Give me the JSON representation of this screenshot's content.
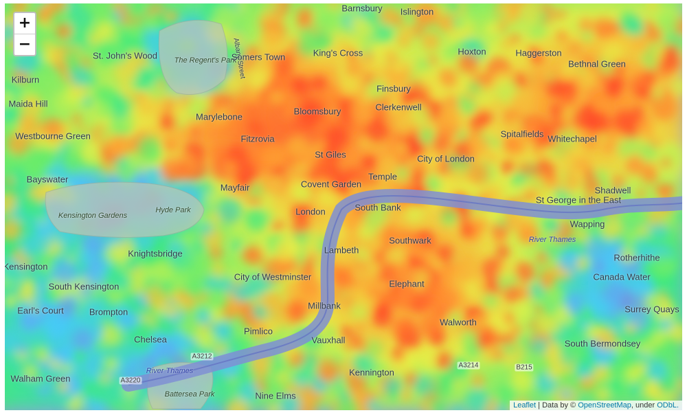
{
  "map": {
    "zoom_in_label": "+",
    "zoom_out_label": "−",
    "attribution": {
      "leaflet": "Leaflet",
      "separator": " | ",
      "data_by": "Data by © ",
      "osm": "OpenStreetMap",
      "under": ", under ",
      "odbl": "ODbL."
    },
    "places": [
      {
        "name": "Barnsbury",
        "kind": "area"
      },
      {
        "name": "Islington",
        "kind": "area"
      },
      {
        "name": "St. John's Wood",
        "kind": "area"
      },
      {
        "name": "The Regent's Park",
        "kind": "park"
      },
      {
        "name": "Albany Street",
        "kind": "street"
      },
      {
        "name": "Somers Town",
        "kind": "area"
      },
      {
        "name": "King's Cross",
        "kind": "area"
      },
      {
        "name": "Hoxton",
        "kind": "area"
      },
      {
        "name": "Haggerston",
        "kind": "area"
      },
      {
        "name": "Bethnal Green",
        "kind": "area"
      },
      {
        "name": "Kilburn",
        "kind": "area"
      },
      {
        "name": "Maida Hill",
        "kind": "area"
      },
      {
        "name": "Finsbury",
        "kind": "area"
      },
      {
        "name": "Clerkenwell",
        "kind": "area"
      },
      {
        "name": "Marylebone",
        "kind": "area"
      },
      {
        "name": "Bloomsbury",
        "kind": "area"
      },
      {
        "name": "Westbourne Green",
        "kind": "area"
      },
      {
        "name": "Fitzrovia",
        "kind": "area"
      },
      {
        "name": "Spitalfields",
        "kind": "area"
      },
      {
        "name": "Whitechapel",
        "kind": "area"
      },
      {
        "name": "St Giles",
        "kind": "area"
      },
      {
        "name": "City of London",
        "kind": "area"
      },
      {
        "name": "Bayswater",
        "kind": "area"
      },
      {
        "name": "Mayfair",
        "kind": "area"
      },
      {
        "name": "Covent Garden",
        "kind": "area"
      },
      {
        "name": "Temple",
        "kind": "area"
      },
      {
        "name": "Kensington Gardens",
        "kind": "park"
      },
      {
        "name": "Hyde Park",
        "kind": "park"
      },
      {
        "name": "London",
        "kind": "area"
      },
      {
        "name": "South Bank",
        "kind": "area"
      },
      {
        "name": "Shadwell",
        "kind": "area"
      },
      {
        "name": "St George in the East",
        "kind": "area"
      },
      {
        "name": "Wapping",
        "kind": "area"
      },
      {
        "name": "River Thames",
        "kind": "water"
      },
      {
        "name": "Knightsbridge",
        "kind": "area"
      },
      {
        "name": "Lambeth",
        "kind": "area"
      },
      {
        "name": "Southwark",
        "kind": "area"
      },
      {
        "name": "Kensington",
        "kind": "area"
      },
      {
        "name": "Rotherhithe",
        "kind": "area"
      },
      {
        "name": "South Kensington",
        "kind": "area"
      },
      {
        "name": "City of Westminster",
        "kind": "area"
      },
      {
        "name": "Canada Water",
        "kind": "area"
      },
      {
        "name": "Millbank",
        "kind": "area"
      },
      {
        "name": "Elephant",
        "kind": "area"
      },
      {
        "name": "Earl's Court",
        "kind": "area"
      },
      {
        "name": "Brompton",
        "kind": "area"
      },
      {
        "name": "Surrey Quays",
        "kind": "area"
      },
      {
        "name": "Pimlico",
        "kind": "area"
      },
      {
        "name": "Walworth",
        "kind": "area"
      },
      {
        "name": "Chelsea",
        "kind": "area"
      },
      {
        "name": "Vauxhall",
        "kind": "area"
      },
      {
        "name": "South Bermondsey",
        "kind": "area"
      },
      {
        "name": "A3212",
        "kind": "road"
      },
      {
        "name": "River Thames",
        "kind": "water"
      },
      {
        "name": "A3220",
        "kind": "road"
      },
      {
        "name": "A3214",
        "kind": "road"
      },
      {
        "name": "B215",
        "kind": "road"
      },
      {
        "name": "Kennington",
        "kind": "area"
      },
      {
        "name": "Walham Green",
        "kind": "area"
      },
      {
        "name": "Battersea Park",
        "kind": "park"
      },
      {
        "name": "Nine Elms",
        "kind": "area"
      }
    ]
  }
}
